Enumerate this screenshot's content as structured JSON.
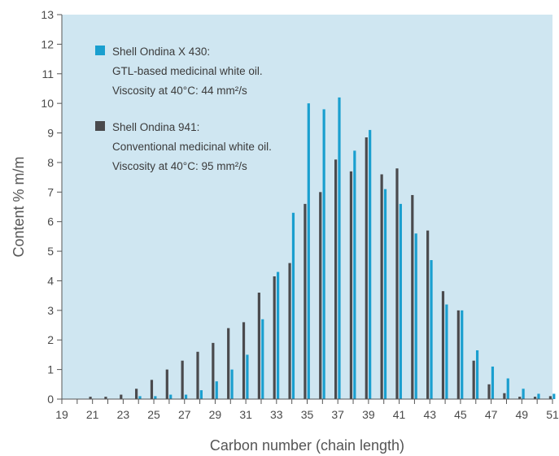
{
  "chart_data": {
    "type": "bar",
    "title": "",
    "xlabel": "Carbon number (chain length)",
    "ylabel": "Content % m/m",
    "xlim": [
      19,
      51
    ],
    "ylim": [
      0,
      13
    ],
    "x_ticks": [
      "19",
      "21",
      "23",
      "25",
      "27",
      "29",
      "31",
      "33",
      "35",
      "37",
      "39",
      "41",
      "43",
      "45",
      "47",
      "49",
      "51"
    ],
    "y_ticks": [
      "0",
      "1",
      "2",
      "3",
      "4",
      "5",
      "6",
      "7",
      "8",
      "9",
      "10",
      "11",
      "12",
      "13"
    ],
    "grid": false,
    "legend_position": "top-left",
    "plot_background": "#cfe6f1",
    "categories": [
      21,
      22,
      23,
      24,
      25,
      26,
      27,
      28,
      29,
      30,
      31,
      32,
      33,
      34,
      35,
      36,
      37,
      38,
      39,
      40,
      41,
      42,
      43,
      44,
      45,
      46,
      47,
      48,
      49,
      50,
      51
    ],
    "series": [
      {
        "name": "Shell Ondina 941",
        "legend_lines": [
          "Shell Ondina 941:",
          "Conventional medicinal white oil.",
          "Viscosity at 40°C: 95 mm²/s"
        ],
        "color": "#4a4a4d",
        "values": [
          0.08,
          0.08,
          0.15,
          0.35,
          0.65,
          1.0,
          1.3,
          1.6,
          1.9,
          2.4,
          2.6,
          3.6,
          4.15,
          4.6,
          6.6,
          7.0,
          8.1,
          7.7,
          8.85,
          7.6,
          7.8,
          6.9,
          5.7,
          3.65,
          3.0,
          1.3,
          0.5,
          0.2,
          0.08,
          0.08,
          0.1
        ]
      },
      {
        "name": "Shell Ondina X 430",
        "legend_lines": [
          "Shell Ondina X 430:",
          "GTL-based medicinal white oil.",
          "Viscosity at 40°C: 44 mm²/s"
        ],
        "color": "#1a9fcf",
        "values": [
          0.0,
          0.0,
          0.0,
          0.1,
          0.1,
          0.15,
          0.15,
          0.3,
          0.6,
          1.0,
          1.5,
          2.7,
          4.3,
          6.3,
          10.0,
          9.8,
          10.2,
          8.4,
          9.1,
          7.1,
          6.6,
          5.6,
          4.7,
          3.2,
          3.0,
          1.65,
          1.1,
          0.7,
          0.35,
          0.18,
          0.18
        ]
      }
    ]
  }
}
